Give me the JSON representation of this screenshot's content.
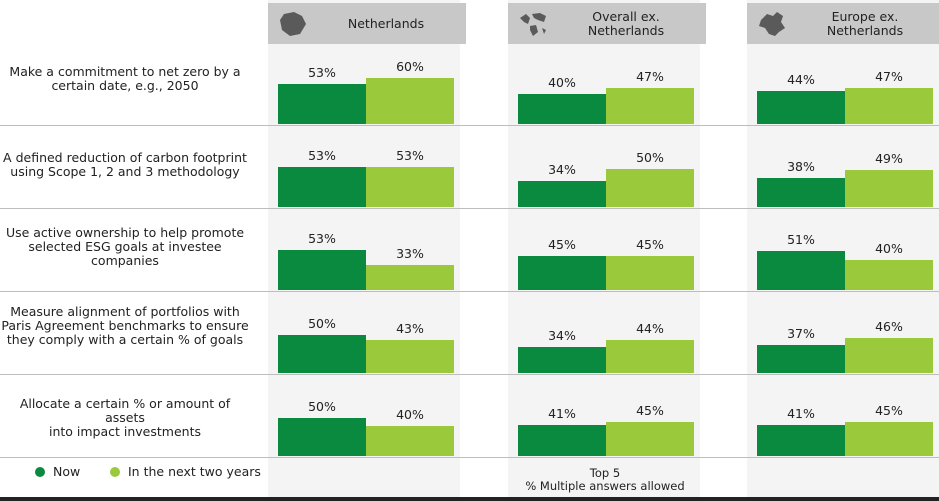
{
  "chart_data": {
    "type": "bar",
    "panels": [
      "Netherlands",
      "Overall ex.\nNetherlands",
      "Europe ex.\nNetherlands"
    ],
    "categories": [
      "Make a commitment to net zero by a\ncertain date, e.g., 2050",
      "A defined reduction of carbon footprint\nusing Scope 1, 2 and 3 methodology",
      "Use active ownership to help promote\nselected ESG goals at investee\ncompanies",
      "Measure alignment of portfolios with\nParis Agreement benchmarks to ensure\nthey comply with a certain % of goals",
      "Allocate a certain % or amount of assets\ninto impact investments"
    ],
    "series": [
      {
        "name": "Now",
        "color": "#0a8a3e",
        "values": [
          [
            53,
            53,
            53,
            50,
            50
          ],
          [
            40,
            34,
            45,
            34,
            41
          ],
          [
            44,
            38,
            51,
            37,
            41
          ]
        ]
      },
      {
        "name": "In the next two years",
        "color": "#9ac93c",
        "values": [
          [
            60,
            53,
            33,
            43,
            40
          ],
          [
            47,
            50,
            45,
            44,
            45
          ],
          [
            47,
            49,
            40,
            46,
            45
          ]
        ]
      }
    ],
    "value_labels": {
      "now": [
        [
          "53%",
          "53%",
          "53%",
          "50%",
          "50%"
        ],
        [
          "40%",
          "34%",
          "45%",
          "34%",
          "41%"
        ],
        [
          "44%",
          "38%",
          "51%",
          "37%",
          "41%"
        ]
      ],
      "next": [
        [
          "60%",
          "53%",
          "33%",
          "43%",
          "40%"
        ],
        [
          "47%",
          "50%",
          "45%",
          "44%",
          "45%"
        ],
        [
          "47%",
          "49%",
          "40%",
          "46%",
          "45%"
        ]
      ]
    },
    "ylim": [
      0,
      100
    ]
  },
  "legend": {
    "now": "Now",
    "next": "In the next two years"
  },
  "footnote": {
    "line1": "Top 5",
    "line2": "% Multiple answers allowed"
  },
  "icons": [
    "netherlands-map-icon",
    "world-map-icon",
    "europe-map-icon"
  ]
}
